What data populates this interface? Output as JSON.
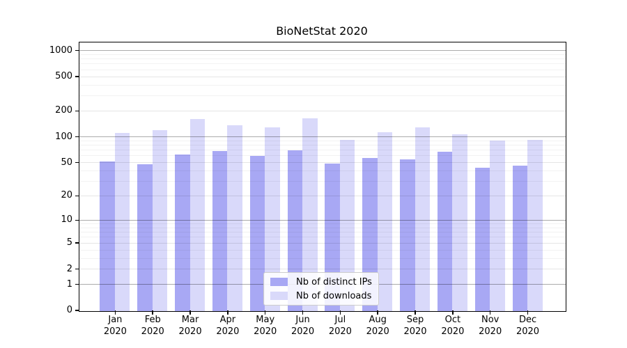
{
  "chart_data": {
    "type": "bar",
    "title": "BioNetStat 2020",
    "categories": [
      "Jan 2020",
      "Feb 2020",
      "Mar 2020",
      "Apr 2020",
      "May 2020",
      "Jun 2020",
      "Jul 2020",
      "Aug 2020",
      "Sep 2020",
      "Oct 2020",
      "Nov 2020",
      "Dec 2020"
    ],
    "series": [
      {
        "name": "Nb of distinct IPs",
        "color": "#a8a8f4",
        "values": [
          52,
          48,
          63,
          69,
          60,
          70,
          49,
          57,
          55,
          67,
          44,
          46
        ]
      },
      {
        "name": "Nb of downloads",
        "color": "#d9d9fa",
        "values": [
          113,
          120,
          162,
          138,
          130,
          165,
          93,
          115,
          130,
          108,
          91,
          93
        ]
      }
    ],
    "y_ticks": [
      0,
      1,
      2,
      5,
      10,
      20,
      50,
      100,
      200,
      500,
      1000
    ],
    "y_scale": "log10(v+1)",
    "ylim": [
      0,
      1230
    ],
    "grid": true,
    "legend_position": "lower center"
  }
}
